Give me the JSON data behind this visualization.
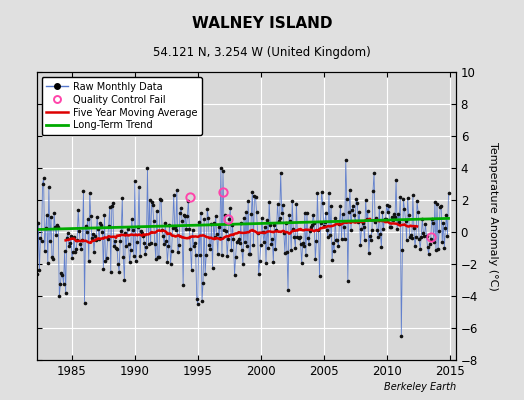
{
  "title": "WALNEY ISLAND",
  "subtitle": "54.121 N, 3.254 W (United Kingdom)",
  "ylabel": "Temperature Anomaly (°C)",
  "watermark": "Berkeley Earth",
  "xlim": [
    1982.2,
    2015.5
  ],
  "ylim": [
    -8,
    10
  ],
  "yticks": [
    -8,
    -6,
    -4,
    -2,
    0,
    2,
    4,
    6,
    8,
    10
  ],
  "xticks": [
    1985,
    1990,
    1995,
    2000,
    2005,
    2010,
    2015
  ],
  "background_color": "#e0e0e0",
  "plot_bg_color": "#d8d8d8",
  "grid_color": "#ffffff",
  "raw_line_color": "#5577cc",
  "raw_dot_color": "#111111",
  "moving_avg_color": "#dd0000",
  "trend_color": "#00aa00",
  "qc_fail_color": "#ff44aa",
  "seed": 12,
  "n_years": 33,
  "start_year": 1982,
  "figsize": [
    5.24,
    4.0
  ],
  "dpi": 100
}
